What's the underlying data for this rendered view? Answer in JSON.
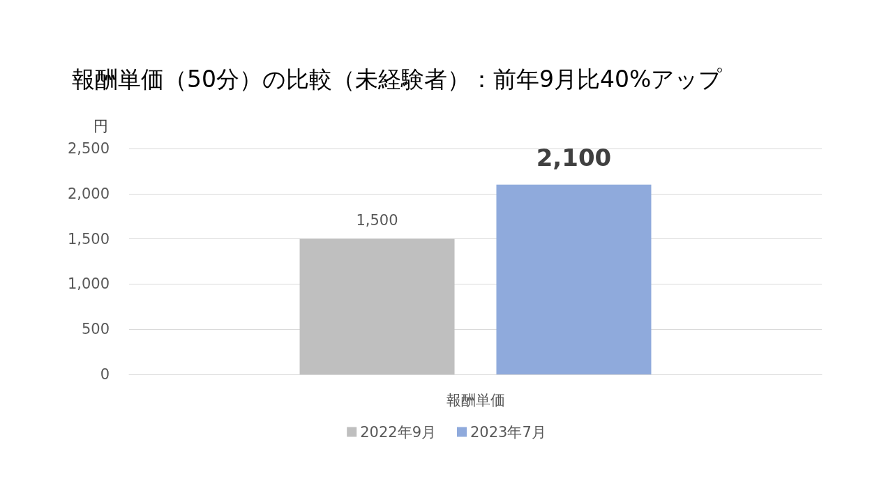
{
  "chart_data": {
    "type": "bar",
    "title": "報酬単価（50分）の比較（未経験者）：前年9月比40%アップ",
    "ylabel": "円",
    "categories": [
      "報酬単価"
    ],
    "series": [
      {
        "name": "2022年9月",
        "color": "#bfbfbf",
        "values": [
          1500
        ],
        "value_labels": [
          "1,500"
        ]
      },
      {
        "name": "2023年7月",
        "color": "#8faadc",
        "values": [
          2100
        ],
        "value_labels": [
          "2,100"
        ]
      }
    ],
    "ylim": [
      0,
      2500
    ],
    "yticks": [
      {
        "value": 0,
        "label": "0"
      },
      {
        "value": 500,
        "label": "500"
      },
      {
        "value": 1000,
        "label": "1,000"
      },
      {
        "value": 1500,
        "label": "1,500"
      },
      {
        "value": 2000,
        "label": "2,000"
      },
      {
        "value": 2500,
        "label": "2,500"
      }
    ],
    "grid": "y",
    "legend": "bottom"
  }
}
